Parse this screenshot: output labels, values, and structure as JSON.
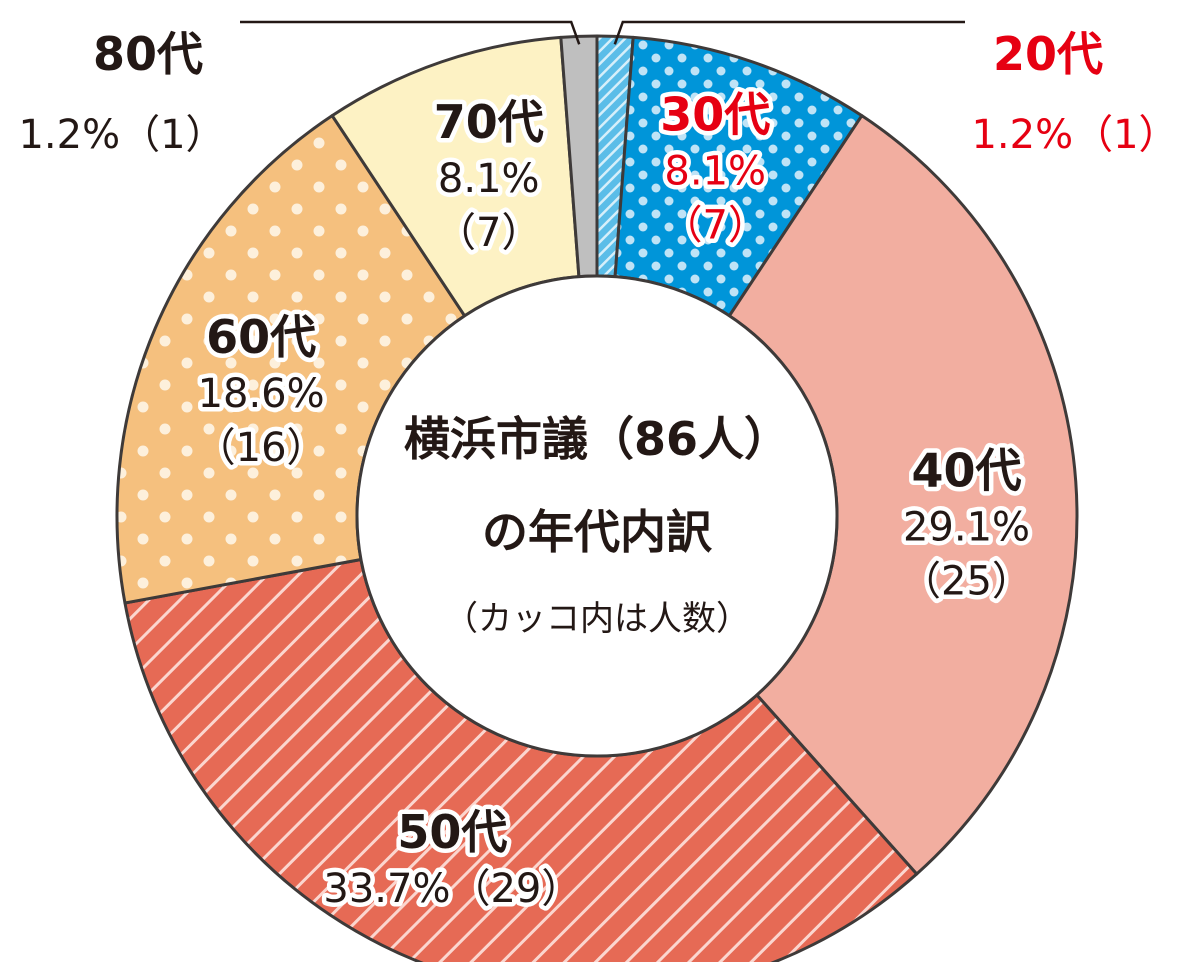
{
  "chart_data": {
    "type": "pie",
    "donut": true,
    "title_line1": "横浜市議（86人）",
    "title_line2": "の年代内訳",
    "subtitle": "（カッコ内は人数）",
    "start": "top, clockwise",
    "slices": [
      {
        "label": "20代",
        "percent": "1.2%",
        "count": "（1）",
        "percent_value": 1.2,
        "color": "#5bbde8",
        "pattern": "hatch",
        "text_color": "#e60012",
        "label_style": "external-right",
        "value_line": "1.2%（1）"
      },
      {
        "label": "30代",
        "percent": "8.1%",
        "count": "（7）",
        "percent_value": 8.1,
        "color": "#0095d9",
        "pattern": "dots",
        "text_color": "#e60012",
        "label_style": "inside"
      },
      {
        "label": "40代",
        "percent": "29.1%",
        "count": "（25）",
        "percent_value": 29.1,
        "color": "#f2aea0",
        "pattern": "none",
        "text_color": "#231815",
        "label_style": "inside"
      },
      {
        "label": "50代",
        "percent": "33.7%",
        "count": "（29）",
        "percent_value": 33.7,
        "color": "#e66a55",
        "pattern": "hatch",
        "text_color": "#231815",
        "label_style": "inside-oneline",
        "value_line": "33.7%（29）"
      },
      {
        "label": "60代",
        "percent": "18.6%",
        "count": "（16）",
        "percent_value": 18.6,
        "color": "#f5c07e",
        "pattern": "dots",
        "text_color": "#231815",
        "label_style": "inside"
      },
      {
        "label": "70代",
        "percent": "8.1%",
        "count": "（7）",
        "percent_value": 8.1,
        "color": "#fdf2c4",
        "pattern": "none",
        "text_color": "#231815",
        "label_style": "inside"
      },
      {
        "label": "80代",
        "percent": "1.2%",
        "count": "（1）",
        "percent_value": 1.2,
        "color": "#bfbfbf",
        "pattern": "none",
        "text_color": "#231815",
        "label_style": "external-left",
        "value_line": "1.2%（1）"
      }
    ]
  }
}
